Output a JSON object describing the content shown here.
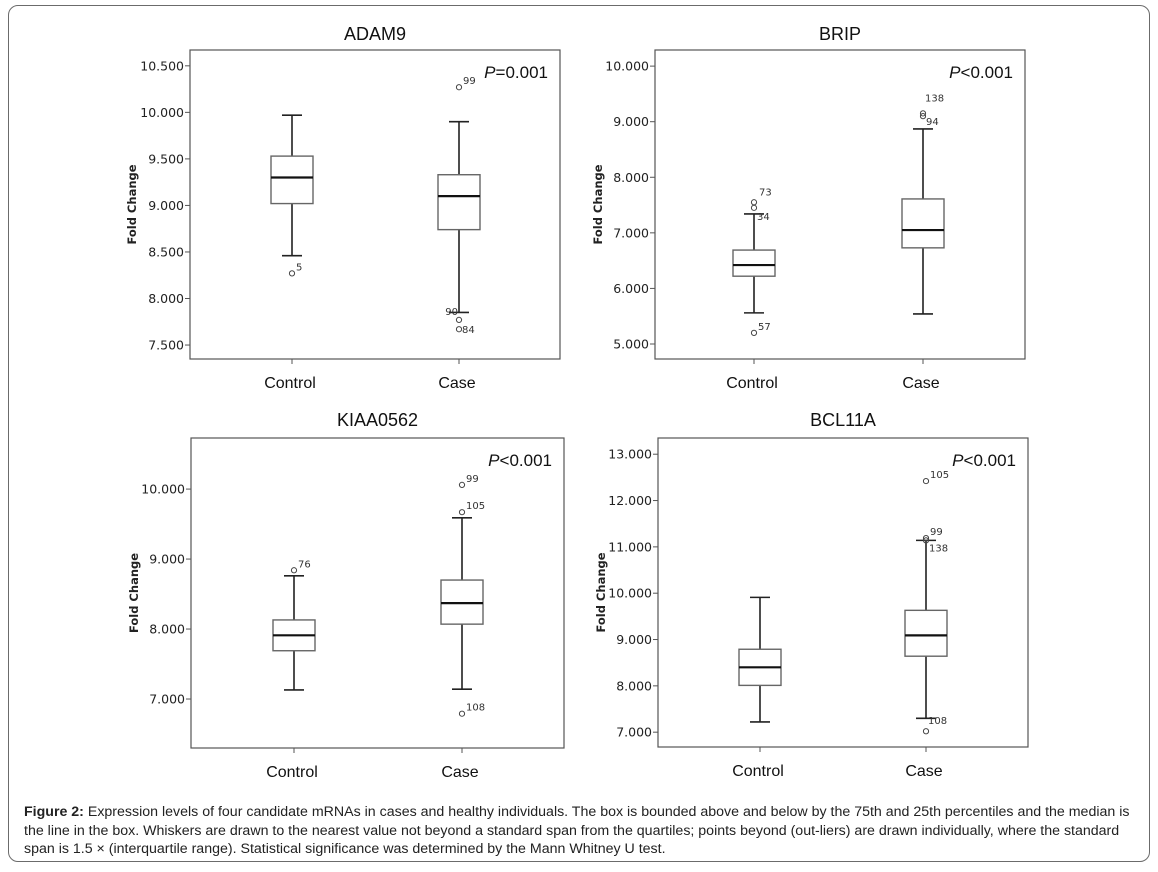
{
  "figure": {
    "caption_label": "Figure 2:",
    "caption_text": " Expression levels of four candidate mRNAs in cases and healthy individuals. The box is bounded above and below by the 75th and 25th percentiles and the median is the line in the box. Whiskers are drawn to the nearest value not beyond a standard span from the quartiles; points beyond (out-liers) are drawn individually, where the standard span is 1.5 × (interquartile range). Statistical significance was determined by the Mann Whitney U test."
  },
  "chart_data": [
    {
      "type": "box",
      "title": "ADAM9",
      "xlabel": "",
      "ylabel": "Fold Change",
      "annotation": {
        "italic": "P",
        "text": "=0.001"
      },
      "categories": [
        "Control",
        "Case"
      ],
      "yticks": [
        "7.500",
        "8.000",
        "8.500",
        "9.000",
        "9.500",
        "10.000",
        "10.500"
      ],
      "ytick_values": [
        7.5,
        8.0,
        8.5,
        9.0,
        9.5,
        10.0,
        10.5
      ],
      "ylim": [
        7.35,
        10.67
      ],
      "grid": false,
      "boxes": [
        {
          "category": "Control",
          "whisker_low": 8.46,
          "q1": 9.02,
          "median": 9.3,
          "q3": 9.53,
          "whisker_high": 9.97,
          "outliers": [
            {
              "value": 8.27,
              "label": "5"
            }
          ]
        },
        {
          "category": "Case",
          "whisker_low": 7.85,
          "q1": 8.74,
          "median": 9.1,
          "q3": 9.33,
          "whisker_high": 9.9,
          "outliers": [
            {
              "value": 10.27,
              "label": "99"
            },
            {
              "value": 7.77,
              "label": "90"
            },
            {
              "value": 7.67,
              "label": "84"
            }
          ]
        }
      ]
    },
    {
      "type": "box",
      "title": "BRIP",
      "xlabel": "",
      "ylabel": "Fold Change",
      "annotation": {
        "italic": "P",
        "text": "<0.001"
      },
      "categories": [
        "Control",
        "Case"
      ],
      "yticks": [
        "5.000",
        "6.000",
        "7.000",
        "8.000",
        "9.000",
        "10.000"
      ],
      "ytick_values": [
        5,
        6,
        7,
        8,
        9,
        10
      ],
      "ylim": [
        4.73,
        10.29
      ],
      "grid": false,
      "boxes": [
        {
          "category": "Control",
          "whisker_low": 5.56,
          "q1": 6.22,
          "median": 6.42,
          "q3": 6.69,
          "whisker_high": 7.34,
          "outliers": [
            {
              "value": 7.55,
              "label": "73"
            },
            {
              "value": 7.45,
              "label": "34"
            },
            {
              "value": 5.2,
              "label": "57"
            }
          ]
        },
        {
          "category": "Case",
          "whisker_low": 5.54,
          "q1": 6.73,
          "median": 7.05,
          "q3": 7.61,
          "whisker_high": 8.87,
          "outliers": [
            {
              "value": 9.15,
              "label": "138"
            },
            {
              "value": 9.1,
              "label": "94"
            }
          ]
        }
      ]
    },
    {
      "type": "box",
      "title": "KIAA0562",
      "xlabel": "",
      "ylabel": "Fold Change",
      "annotation": {
        "italic": "P",
        "text": "<0.001"
      },
      "categories": [
        "Control",
        "Case"
      ],
      "yticks": [
        "7.000",
        "8.000",
        "9.000",
        "10.000"
      ],
      "ytick_values": [
        7,
        8,
        9,
        10
      ],
      "ylim": [
        6.3,
        10.73
      ],
      "grid": false,
      "boxes": [
        {
          "category": "Control",
          "whisker_low": 7.13,
          "q1": 7.69,
          "median": 7.91,
          "q3": 8.13,
          "whisker_high": 8.76,
          "outliers": [
            {
              "value": 8.84,
              "label": "76"
            }
          ]
        },
        {
          "category": "Case",
          "whisker_low": 7.14,
          "q1": 8.07,
          "median": 8.37,
          "q3": 8.7,
          "whisker_high": 9.59,
          "outliers": [
            {
              "value": 10.06,
              "label": "99"
            },
            {
              "value": 9.67,
              "label": "105"
            },
            {
              "value": 6.79,
              "label": "108"
            }
          ]
        }
      ]
    },
    {
      "type": "box",
      "title": "BCL11A",
      "xlabel": "",
      "ylabel": "Fold Change",
      "annotation": {
        "italic": "P",
        "text": "<0.001"
      },
      "categories": [
        "Control",
        "Case"
      ],
      "yticks": [
        "7.000",
        "8.000",
        "9.000",
        "10.000",
        "11.000",
        "12.000",
        "13.000"
      ],
      "ytick_values": [
        7,
        8,
        9,
        10,
        11,
        12,
        13
      ],
      "ylim": [
        6.68,
        13.35
      ],
      "grid": false,
      "boxes": [
        {
          "category": "Control",
          "whisker_low": 7.22,
          "q1": 8.01,
          "median": 8.4,
          "q3": 8.79,
          "whisker_high": 9.91,
          "outliers": []
        },
        {
          "category": "Case",
          "whisker_low": 7.3,
          "q1": 8.64,
          "median": 9.09,
          "q3": 9.63,
          "whisker_high": 11.14,
          "outliers": [
            {
              "value": 12.42,
              "label": "105"
            },
            {
              "value": 11.19,
              "label": "99"
            },
            {
              "value": 11.14,
              "label": "138"
            },
            {
              "value": 7.02,
              "label": "108"
            }
          ]
        }
      ]
    }
  ]
}
